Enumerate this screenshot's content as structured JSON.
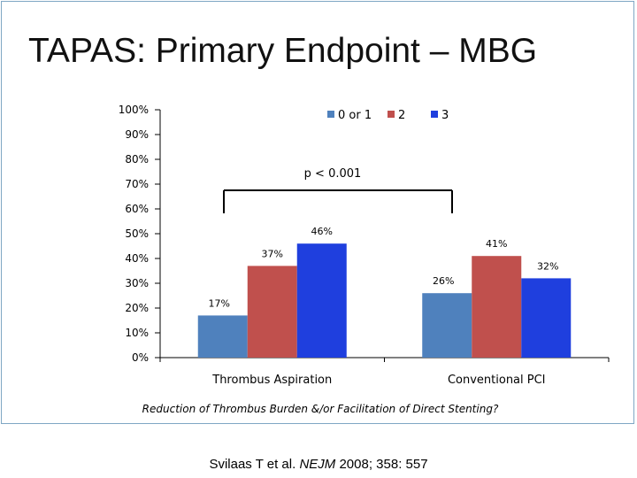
{
  "slide": {
    "title": "TAPAS: Primary Endpoint – MBG",
    "citation_authors": "Svilaas T et al.",
    "citation_journal": "NEJM",
    "citation_details": "2008; 358: 557"
  },
  "colors": {
    "series_0_or_1": "#4f81bd",
    "series_2": "#c0504d",
    "series_3": "#1f3fde",
    "axis": "#000000"
  },
  "chart_data": {
    "type": "bar",
    "title": "",
    "categories": [
      "Thrombus Aspiration",
      "Conventional PCI"
    ],
    "series": [
      {
        "name": "0 or 1",
        "values": [
          17,
          26
        ],
        "labels": [
          "17%",
          "26%"
        ]
      },
      {
        "name": "2",
        "values": [
          37,
          41
        ],
        "labels": [
          "37%",
          "41%"
        ]
      },
      {
        "name": "3",
        "values": [
          46,
          32
        ],
        "labels": [
          "46%",
          "32%"
        ]
      }
    ],
    "yticks": [
      0,
      10,
      20,
      30,
      40,
      50,
      60,
      70,
      80,
      90,
      100
    ],
    "ytick_labels": [
      "0%",
      "10%",
      "20%",
      "30%",
      "40%",
      "50%",
      "60%",
      "70%",
      "80%",
      "90%",
      "100%"
    ],
    "ylim": [
      0,
      100
    ],
    "xlabel": "Reduction of Thrombus Burden &/or Facilitation of Direct Stenting?",
    "ylabel": "",
    "grid": false,
    "legend_position": "top-right",
    "annotation": "p < 0.001"
  }
}
